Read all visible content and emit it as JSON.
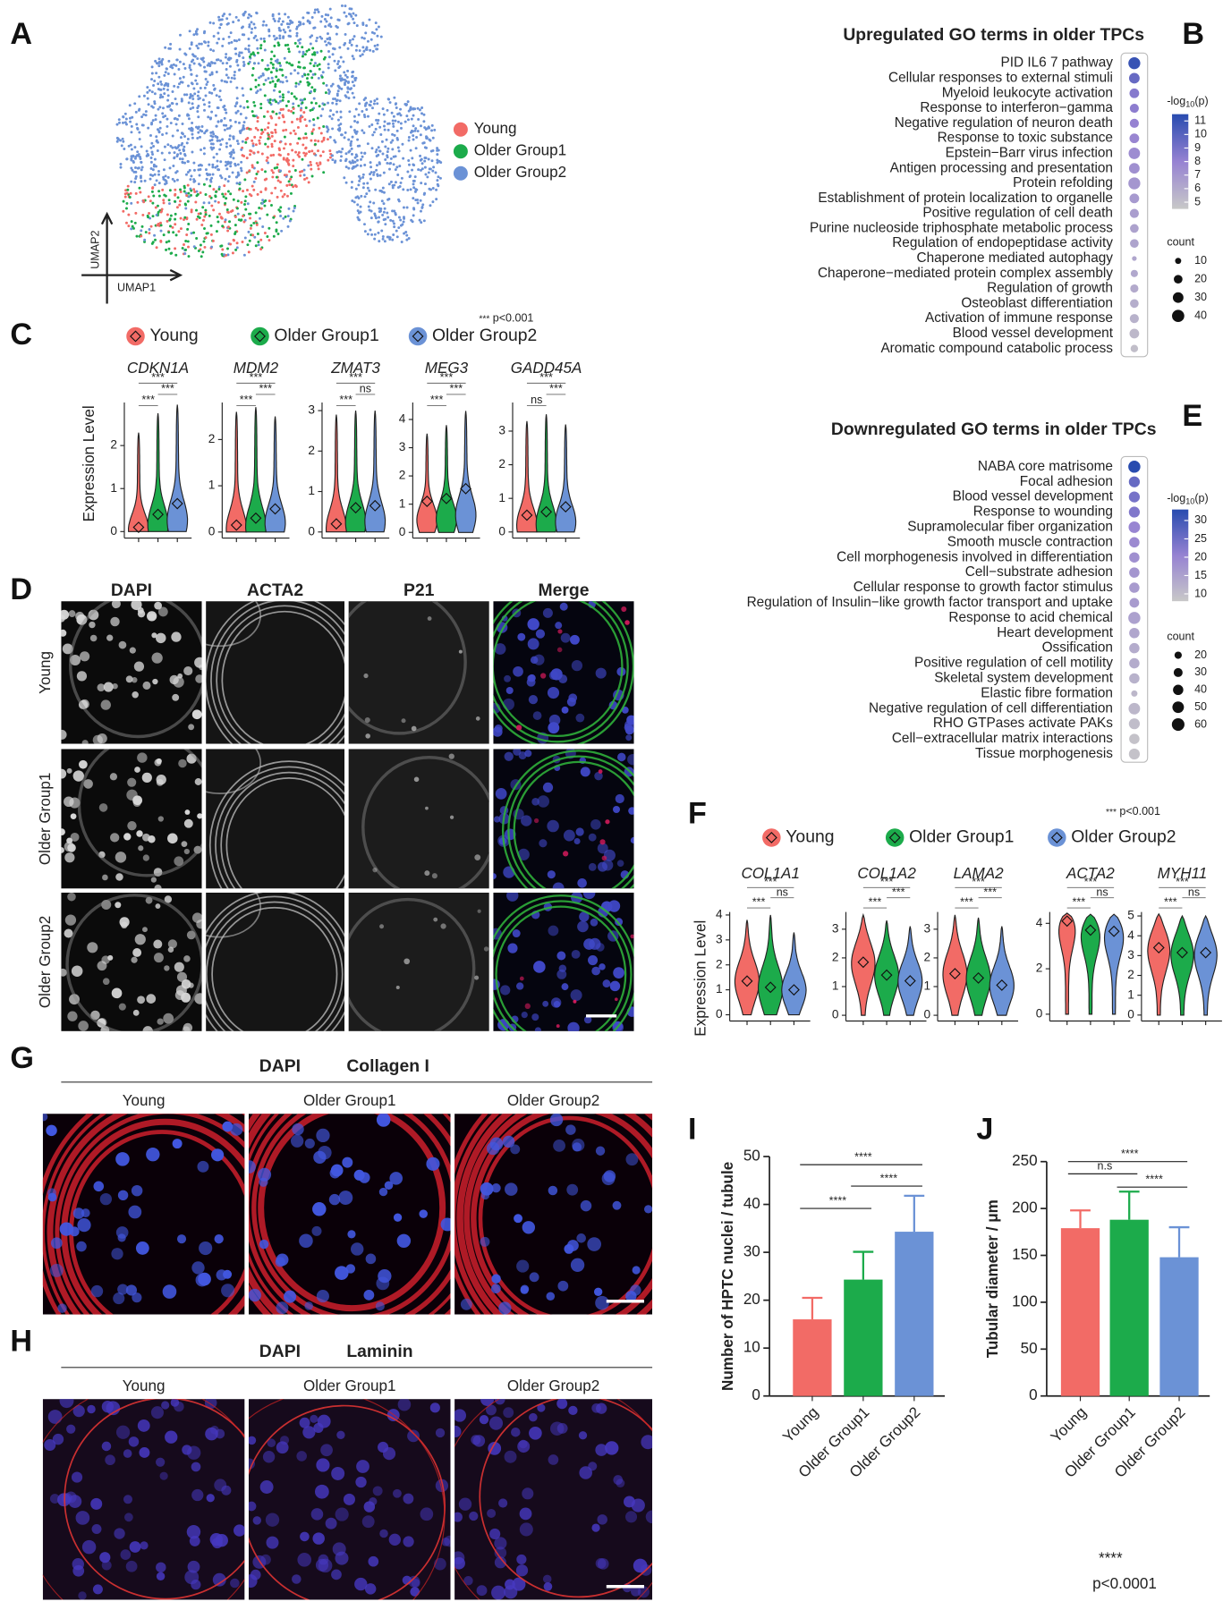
{
  "groups": [
    "Young",
    "Older Group1",
    "Older Group2"
  ],
  "group_colors": [
    "#f26b66",
    "#1cab4b",
    "#6b92d6"
  ],
  "panel_a": {
    "letter": "A",
    "x_axis": "UMAP1",
    "y_axis": "UMAP2"
  },
  "panel_b": {
    "letter": "B",
    "title": "Upregulated GO terms in older TPCs",
    "terms": [
      "PID IL6 7 pathway",
      "Cellular responses to external stimuli",
      "Myeloid leukocyte activation",
      "Response to interferon−gamma",
      "Negative regulation of neuron death",
      "Response to toxic substance",
      "Epstein−Barr virus infection",
      "Antigen processing and presentation",
      "Protein refolding",
      "Establishment of protein localization to organelle",
      "Positive regulation of cell death",
      "Purine nucleoside triphosphate metabolic process",
      "Regulation of endopeptidase activity",
      "Chaperone mediated autophagy",
      "Chaperone−mediated protein complex assembly",
      "Regulation of growth",
      "Osteoblast differentiation",
      "Activation of immune response",
      "Blood vessel development",
      "Aromatic compound catabolic process"
    ],
    "neglog10p": [
      11,
      9.5,
      8.5,
      8.3,
      8,
      7.8,
      7.5,
      7.3,
      7,
      6.8,
      6.6,
      6.4,
      6.3,
      6.2,
      6.1,
      6,
      5.8,
      5.6,
      5.3,
      5
    ],
    "counts": [
      38,
      30,
      25,
      22,
      22,
      25,
      35,
      30,
      38,
      25,
      22,
      20,
      20,
      6,
      14,
      18,
      20,
      22,
      25,
      15
    ],
    "color_title": [
      "-log",
      "10",
      "(p)"
    ],
    "color_lim": [
      4.5,
      11.5
    ],
    "color_ticks": [
      5,
      6,
      7,
      8,
      9,
      10,
      11
    ],
    "count_title": "count",
    "count_ticks": [
      10,
      20,
      30,
      40
    ]
  },
  "panel_c": {
    "letter": "C",
    "note": [
      "***",
      "p<0.001"
    ],
    "y_label": "Expression Level",
    "genes": [
      {
        "name": "CDKN1A",
        "ylim": [
          -0.15,
          3.0
        ],
        "yticks": [
          0,
          1,
          2
        ],
        "means": [
          0.1,
          0.4,
          0.65
        ],
        "maxes": [
          2.3,
          2.75,
          2.95
        ],
        "sig": [
          "***",
          "***",
          "***"
        ]
      },
      {
        "name": "MDM2",
        "ylim": [
          -0.13,
          2.8
        ],
        "yticks": [
          0,
          1,
          2
        ],
        "means": [
          0.15,
          0.3,
          0.5
        ],
        "maxes": [
          2.6,
          2.7,
          2.5
        ],
        "sig": [
          "***",
          "***",
          "***"
        ]
      },
      {
        "name": "ZMAT3",
        "ylim": [
          -0.15,
          3.2
        ],
        "yticks": [
          0,
          1,
          2,
          3
        ],
        "means": [
          0.2,
          0.6,
          0.65
        ],
        "maxes": [
          2.9,
          3.0,
          3.0
        ],
        "sig": [
          "***",
          "ns",
          "***"
        ]
      },
      {
        "name": "MEG3",
        "ylim": [
          -0.2,
          4.6
        ],
        "yticks": [
          0,
          1,
          2,
          3,
          4
        ],
        "means": [
          1.1,
          1.2,
          1.55
        ],
        "maxes": [
          3.5,
          3.8,
          4.3
        ],
        "sig": [
          "***",
          "***",
          "***"
        ]
      },
      {
        "name": "GADD45A",
        "ylim": [
          -0.18,
          3.85
        ],
        "yticks": [
          0,
          1,
          2,
          3
        ],
        "means": [
          0.5,
          0.6,
          0.75
        ],
        "maxes": [
          3.3,
          3.5,
          3.2
        ],
        "sig": [
          "ns",
          "***",
          "***"
        ]
      }
    ]
  },
  "panel_d": {
    "letter": "D",
    "channels": [
      "DAPI",
      "ACTA2",
      "P21",
      "Merge"
    ]
  },
  "panel_e": {
    "letter": "E",
    "title": "Downregulated GO terms in older TPCs",
    "terms": [
      "NABA core matrisome",
      "Focal adhesion",
      "Blood vessel development",
      "Response to wounding",
      "Supramolecular fiber organization",
      "Smooth muscle contraction",
      "Cell morphogenesis involved in differentiation",
      "Cell−substrate adhesion",
      "Cellular response to growth factor stimulus",
      "Regulation of Insulin−like growth factor transport and uptake",
      "Response to acid chemical",
      "Heart development",
      "Ossification",
      "Positive regulation of cell motility",
      "Skeletal system development",
      "Elastic fibre formation",
      "Negative regulation of cell differentiation",
      "RHO GTPases activate PAKs",
      "Cell−extracellular matrix interactions",
      "Tissue morphogenesis"
    ],
    "neglog10p": [
      33,
      26,
      24,
      23,
      20,
      19,
      18,
      17,
      16,
      16,
      15,
      14,
      13,
      13,
      12,
      11,
      11,
      10,
      9,
      9
    ],
    "counts": [
      55,
      45,
      45,
      45,
      50,
      40,
      40,
      40,
      40,
      35,
      55,
      40,
      40,
      40,
      40,
      15,
      50,
      45,
      40,
      45
    ],
    "color_title": [
      "-log",
      "10",
      "(p)"
    ],
    "color_lim": [
      8,
      33
    ],
    "color_ticks": [
      10,
      15,
      20,
      25,
      30
    ],
    "count_title": "count",
    "count_ticks": [
      20,
      30,
      40,
      50,
      60
    ]
  },
  "panel_f": {
    "letter": "F",
    "note": [
      "***",
      "p<0.001"
    ],
    "y_label": "Expression Level",
    "genes": [
      {
        "name": "COL1A1",
        "ylim": [
          -0.25,
          4.12
        ],
        "yticks": [
          0,
          1,
          2,
          3,
          4
        ],
        "means": [
          1.35,
          1.1,
          1.0
        ],
        "maxes": [
          3.8,
          4.0,
          3.3
        ],
        "sig": [
          "***",
          "ns",
          "***"
        ]
      },
      {
        "name": "COL1A2",
        "ylim": [
          -0.2,
          3.6
        ],
        "yticks": [
          0,
          1,
          2,
          3
        ],
        "means": [
          1.85,
          1.4,
          1.2
        ],
        "maxes": [
          3.5,
          3.3,
          3.1
        ],
        "sig": [
          "***",
          "***",
          "***"
        ]
      },
      {
        "name": "LAMA2",
        "ylim": [
          -0.2,
          3.6
        ],
        "yticks": [
          0,
          1,
          2,
          3
        ],
        "means": [
          1.45,
          1.3,
          1.05
        ],
        "maxes": [
          3.5,
          3.4,
          3.1
        ],
        "sig": [
          "***",
          "***",
          "***"
        ]
      },
      {
        "name": "ACTA2",
        "ylim": [
          -0.3,
          4.5
        ],
        "yticks": [
          0,
          2,
          4
        ],
        "means": [
          4.1,
          3.7,
          3.65
        ],
        "maxes": [
          4.45,
          4.4,
          4.4
        ],
        "sig": [
          "***",
          "ns",
          "***"
        ]
      },
      {
        "name": "MYH11",
        "ylim": [
          -0.3,
          5.2
        ],
        "yticks": [
          0,
          1,
          2,
          3,
          4,
          5
        ],
        "means": [
          3.4,
          3.15,
          3.15
        ],
        "maxes": [
          5.1,
          5.0,
          5.0
        ],
        "sig": [
          "***",
          "ns",
          "***"
        ]
      }
    ]
  },
  "panel_g": {
    "letter": "G",
    "stains": [
      "DAPI",
      "Collagen I"
    ]
  },
  "panel_h": {
    "letter": "H",
    "stains": [
      "DAPI",
      "Laminin"
    ]
  },
  "panel_i": {
    "letter": "I",
    "y_label": "Number of HPTC nuclei / tubule",
    "ylim": [
      0,
      50
    ],
    "yticks": [
      0,
      10,
      20,
      30,
      40,
      50
    ],
    "values": [
      16,
      24.3,
      34.3
    ],
    "errors": [
      4.5,
      5.8,
      7.5
    ],
    "sig": [
      "****",
      "****",
      "****"
    ]
  },
  "panel_j": {
    "letter": "J",
    "y_label": "Tubular diameter / μm",
    "ylim": [
      0,
      250
    ],
    "yticks": [
      0,
      50,
      100,
      150,
      200,
      250
    ],
    "values": [
      179,
      188,
      148
    ],
    "errors": [
      19,
      30,
      32
    ],
    "sig": [
      "n.s",
      "****",
      "****"
    ],
    "note": [
      "****",
      "p<0.0001"
    ]
  }
}
